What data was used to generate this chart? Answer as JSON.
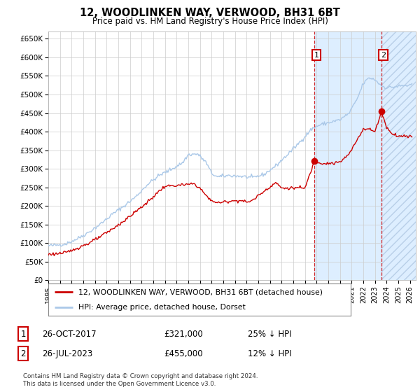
{
  "title": "12, WOODLINKEN WAY, VERWOOD, BH31 6BT",
  "subtitle": "Price paid vs. HM Land Registry's House Price Index (HPI)",
  "ylim": [
    0,
    670000
  ],
  "xlim_start": 1995.0,
  "xlim_end": 2026.5,
  "yticks": [
    0,
    50000,
    100000,
    150000,
    200000,
    250000,
    300000,
    350000,
    400000,
    450000,
    500000,
    550000,
    600000,
    650000
  ],
  "ytick_labels": [
    "£0",
    "£50K",
    "£100K",
    "£150K",
    "£200K",
    "£250K",
    "£300K",
    "£350K",
    "£400K",
    "£450K",
    "£500K",
    "£550K",
    "£600K",
    "£650K"
  ],
  "xticks": [
    1995,
    1996,
    1997,
    1998,
    1999,
    2000,
    2001,
    2002,
    2003,
    2004,
    2005,
    2006,
    2007,
    2008,
    2009,
    2010,
    2011,
    2012,
    2013,
    2014,
    2015,
    2016,
    2017,
    2018,
    2019,
    2020,
    2021,
    2022,
    2023,
    2024,
    2025,
    2026
  ],
  "hpi_color": "#aac8e8",
  "price_color": "#cc0000",
  "sale1_date": 2017.82,
  "sale1_price": 321000,
  "sale1_label": "1",
  "sale2_date": 2023.57,
  "sale2_price": 455000,
  "sale2_label": "2",
  "shaded_color": "#ddeeff",
  "legend_line1": "12, WOODLINKEN WAY, VERWOOD, BH31 6BT (detached house)",
  "legend_line2": "HPI: Average price, detached house, Dorset",
  "table_row1_label": "1",
  "table_row1_date": "26-OCT-2017",
  "table_row1_price": "£321,000",
  "table_row1_hpi": "25% ↓ HPI",
  "table_row2_label": "2",
  "table_row2_date": "26-JUL-2023",
  "table_row2_price": "£455,000",
  "table_row2_hpi": "12% ↓ HPI",
  "footer": "Contains HM Land Registry data © Crown copyright and database right 2024.\nThis data is licensed under the Open Government Licence v3.0.",
  "bg_color": "#ffffff",
  "grid_color": "#cccccc"
}
